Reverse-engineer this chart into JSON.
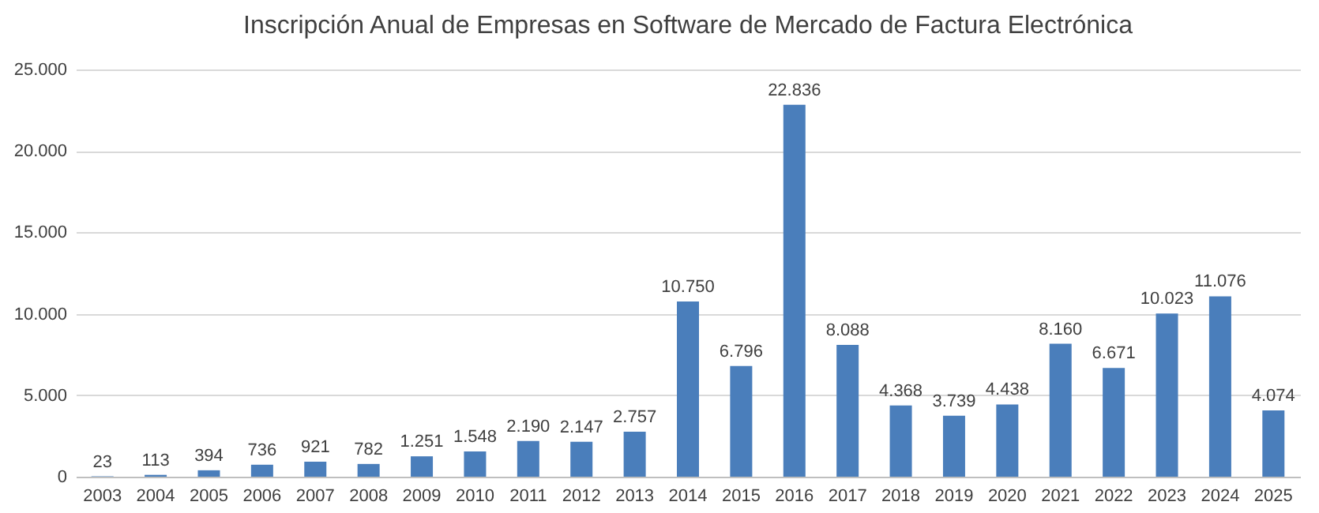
{
  "chart_data": {
    "type": "bar",
    "title": "Inscripción Anual de Empresas en Software de Mercado de Factura Electrónica",
    "categories": [
      "2003",
      "2004",
      "2005",
      "2006",
      "2007",
      "2008",
      "2009",
      "2010",
      "2011",
      "2012",
      "2013",
      "2014",
      "2015",
      "2016",
      "2017",
      "2018",
      "2019",
      "2020",
      "2021",
      "2022",
      "2023",
      "2024",
      "2025"
    ],
    "values": [
      23,
      113,
      394,
      736,
      921,
      782,
      1251,
      1548,
      2190,
      2147,
      2757,
      10750,
      6796,
      22836,
      8088,
      4368,
      3739,
      4438,
      8160,
      6671,
      10023,
      11076,
      4074
    ],
    "value_labels": [
      "23",
      "113",
      "394",
      "736",
      "921",
      "782",
      "1.251",
      "1.548",
      "2.190",
      "2.147",
      "2.757",
      "10.750",
      "6.796",
      "22.836",
      "8.088",
      "4.368",
      "3.739",
      "4.438",
      "8.160",
      "6.671",
      "10.023",
      "11.076",
      "4.074"
    ],
    "color": "#4a7ebb",
    "ylim": [
      0,
      25000
    ],
    "yticks": [
      {
        "value": 0,
        "label": "0"
      },
      {
        "value": 5000,
        "label": "5.000"
      },
      {
        "value": 10000,
        "label": "10.000"
      },
      {
        "value": 15000,
        "label": "15.000"
      },
      {
        "value": 20000,
        "label": "20.000"
      },
      {
        "value": 25000,
        "label": "25.000"
      }
    ],
    "grid": "y"
  }
}
